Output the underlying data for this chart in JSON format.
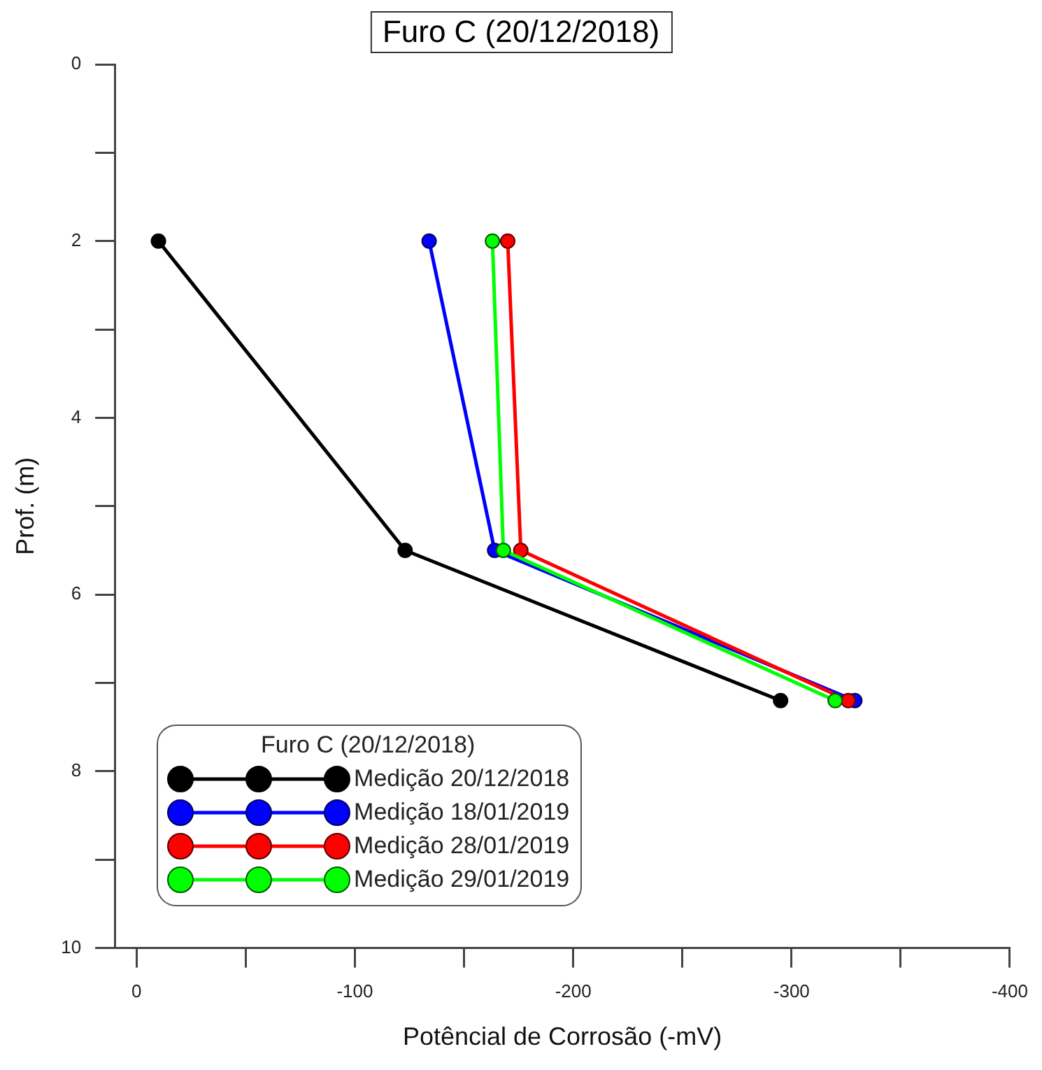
{
  "chart_data": {
    "type": "line",
    "title": "Furo C (20/12/2018)",
    "xlabel": "Potêncial de Corrosão (-mV)",
    "ylabel": "Prof. (m)",
    "legend_title": "Furo C (20/12/2018)",
    "xlim": [
      10,
      -400
    ],
    "xticks": [
      0,
      {
        "value": -50,
        "label": null
      },
      -100,
      {
        "value": -150,
        "label": null
      },
      -200,
      {
        "value": -250,
        "label": null
      },
      -300,
      {
        "value": -350,
        "label": null
      },
      -400
    ],
    "ylim": [
      10,
      0
    ],
    "yticks": [
      0,
      {
        "value": 1,
        "label": null
      },
      2,
      {
        "value": 3,
        "label": null
      },
      4,
      {
        "value": 5,
        "label": null
      },
      6,
      {
        "value": 7,
        "label": null
      },
      8,
      {
        "value": 9,
        "label": null
      },
      10
    ],
    "series": [
      {
        "name": "Medição 20/12/2018",
        "color": "#000000",
        "x": [
          -10,
          -123,
          -295
        ],
        "values": [
          2,
          5.5,
          7.2
        ]
      },
      {
        "name": "Medição 18/01/2019",
        "color": "#0000ff",
        "x": [
          -134,
          -164,
          -329
        ],
        "values": [
          2,
          5.5,
          7.2
        ]
      },
      {
        "name": "Medição 28/01/2019",
        "color": "#ff0000",
        "x": [
          -170,
          -176,
          -326
        ],
        "values": [
          2,
          5.5,
          7.2
        ]
      },
      {
        "name": "Medição 29/01/2019",
        "color": "#00ff00",
        "x": [
          -163,
          -168,
          -320
        ],
        "values": [
          2,
          5.5,
          7.2
        ]
      }
    ],
    "grid": false,
    "legend": "bottom left",
    "marker": "circle",
    "line_style": "solid"
  }
}
